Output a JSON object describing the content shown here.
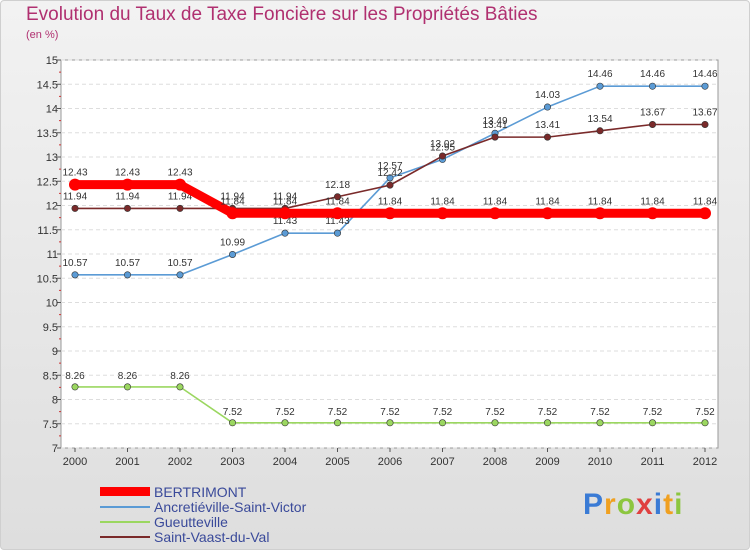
{
  "chart_data": {
    "type": "line",
    "title": "Evolution du Taux de Taxe Foncière sur les Propriétés Bâties",
    "subtitle": "(en %)",
    "x": [
      "2000",
      "2001",
      "2002",
      "2003",
      "2004",
      "2005",
      "2006",
      "2007",
      "2008",
      "2009",
      "2010",
      "2011",
      "2012"
    ],
    "ylim": [
      7,
      15
    ],
    "yticks": [
      "7",
      "7.5",
      "8",
      "8.5",
      "9",
      "9.5",
      "10",
      "10.5",
      "11",
      "11.5",
      "12",
      "12.5",
      "13",
      "13.5",
      "14",
      "14.5",
      "15"
    ],
    "series": [
      {
        "name": "BERTRIMONT",
        "color": "#ff0000",
        "values": [
          12.43,
          12.43,
          12.43,
          11.84,
          11.84,
          11.84,
          11.84,
          11.84,
          11.84,
          11.84,
          11.84,
          11.84,
          11.84
        ]
      },
      {
        "name": "Ancretiéville-Saint-Victor",
        "color": "#5b9bd5",
        "values": [
          10.57,
          10.57,
          10.57,
          10.99,
          11.43,
          11.43,
          12.57,
          12.95,
          13.49,
          14.03,
          14.46,
          14.46,
          14.46
        ]
      },
      {
        "name": "Gueutteville",
        "color": "#9bd760",
        "values": [
          8.26,
          8.26,
          8.26,
          7.52,
          7.52,
          7.52,
          7.52,
          7.52,
          7.52,
          7.52,
          7.52,
          7.52,
          7.52
        ]
      },
      {
        "name": "Saint-Vaast-du-Val",
        "color": "#7a2a2a",
        "values": [
          11.94,
          11.94,
          11.94,
          11.94,
          11.94,
          12.18,
          12.42,
          13.02,
          13.41,
          13.41,
          13.54,
          13.67,
          13.67
        ]
      }
    ]
  },
  "logo": {
    "text": "Proxiti"
  }
}
